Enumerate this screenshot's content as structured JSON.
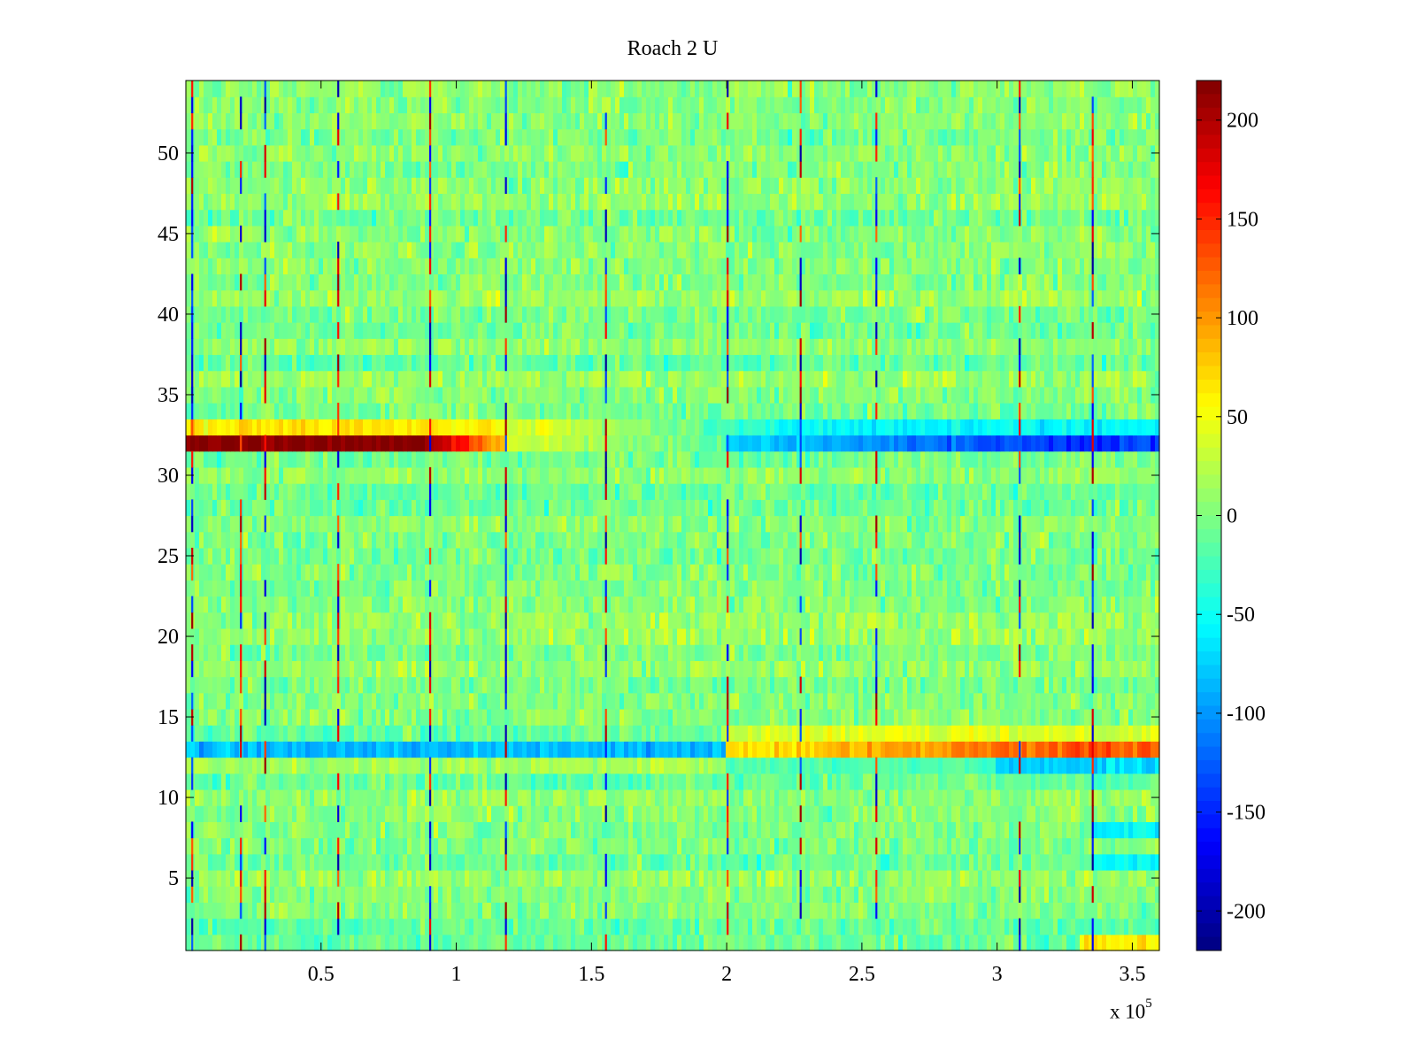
{
  "chart_data": {
    "type": "heatmap",
    "title": "Roach 2 U",
    "xlabel": "",
    "ylabel": "",
    "x_multiplier_label": "x 10",
    "x_multiplier_exponent": "5",
    "xlim": [
      0,
      3.6
    ],
    "ylim": [
      0.5,
      54.5
    ],
    "x_ticks": [
      0.5,
      1,
      1.5,
      2,
      2.5,
      3,
      3.5
    ],
    "x_tick_labels": [
      "0.5",
      "1",
      "1.5",
      "2",
      "2.5",
      "3",
      "3.5"
    ],
    "y_ticks": [
      5,
      10,
      15,
      20,
      25,
      30,
      35,
      40,
      45,
      50
    ],
    "y_tick_labels": [
      "5",
      "10",
      "15",
      "20",
      "25",
      "30",
      "35",
      "40",
      "45",
      "50"
    ],
    "rows": 54,
    "colormap": "jet",
    "colorbar": {
      "clim": [
        -220,
        220
      ],
      "ticks": [
        -200,
        -150,
        -100,
        -50,
        0,
        50,
        100,
        150,
        200
      ],
      "tick_labels": [
        "-200",
        "-150",
        "-100",
        "-50",
        "0",
        "50",
        "100",
        "150",
        "200"
      ]
    },
    "notable_features": [
      {
        "row": 32,
        "description": "strong positive (~+220) from x=0 to ~0.9e5, decaying to ~+50 by 1.2e5, then negative (~-60 to -150) beyond 2e5"
      },
      {
        "row": 33,
        "description": "positive (~+60) for x<1e5, negative (~-50) beyond 2.2e5"
      },
      {
        "row": 13,
        "description": "negative (~-80) for x<2e5, positive (~+80 to +140) beyond 2e5, strongest near 3.3e5"
      },
      {
        "row": 12,
        "description": "slightly positive for x<2e5, negative (~-70) beyond 3e5"
      },
      {
        "row": "most",
        "description": "background noise between about -40 and +40"
      }
    ],
    "vertical_streaks_x": [
      0.02,
      0.2,
      0.29,
      0.56,
      0.9,
      1.18,
      1.55,
      2.0,
      2.27,
      2.55,
      3.08,
      3.35
    ]
  }
}
